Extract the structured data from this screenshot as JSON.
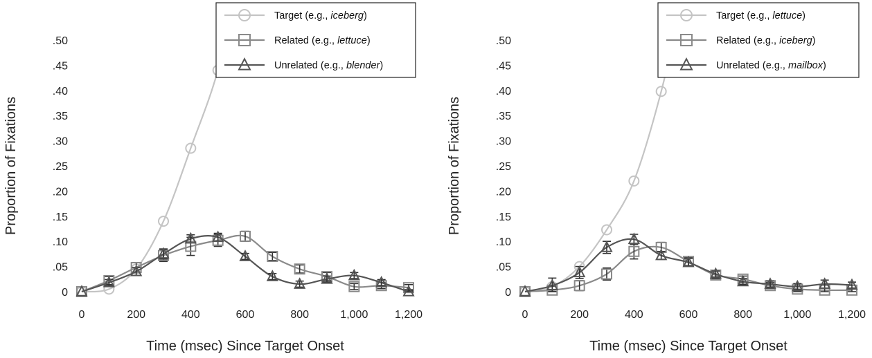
{
  "chart_data": [
    {
      "type": "line",
      "xlabel": "Time (msec) Since Target Onset",
      "ylabel": "Proportion of Fixations",
      "xlim": [
        0,
        1200
      ],
      "ylim": [
        0,
        0.5
      ],
      "x": [
        0,
        100,
        200,
        300,
        400,
        500,
        600,
        700,
        800,
        900,
        1000,
        1100,
        1200
      ],
      "xticks": [
        "0",
        "200",
        "400",
        "600",
        "800",
        "1,000",
        "1,200"
      ],
      "xtick_values": [
        0,
        200,
        400,
        600,
        800,
        1000,
        1200
      ],
      "yticks": [
        "0",
        ".05",
        ".10",
        ".15",
        ".20",
        ".25",
        ".30",
        ".35",
        ".40",
        ".45",
        ".50"
      ],
      "ytick_values": [
        0,
        0.05,
        0.1,
        0.15,
        0.2,
        0.25,
        0.3,
        0.35,
        0.4,
        0.45,
        0.5
      ],
      "legend_position": "top-right",
      "series": [
        {
          "prefix": "Target (e.g., ",
          "example": "iceberg",
          "suffix": ")",
          "marker": "circle",
          "color": "#c4c4c4",
          "values": [
            0,
            0.005,
            0.045,
            0.14,
            0.285,
            0.44,
            null,
            null,
            null,
            null,
            null,
            null,
            null
          ],
          "errors": [
            0,
            0,
            0,
            0,
            0,
            0,
            null,
            null,
            null,
            null,
            null,
            null,
            null
          ]
        },
        {
          "prefix": "Related (e.g., ",
          "example": "lettuce",
          "suffix": ")",
          "marker": "square",
          "color": "#8a8a8a",
          "values": [
            0,
            0.022,
            0.048,
            0.072,
            0.09,
            0.102,
            0.11,
            0.07,
            0.045,
            0.03,
            0.01,
            0.012,
            0.008
          ],
          "errors": [
            0,
            0.008,
            0.01,
            0.012,
            0.018,
            0.012,
            0.01,
            0.008,
            0.008,
            0.008,
            0.006,
            0.006,
            0.006
          ]
        },
        {
          "prefix": "Unrelated (e.g., ",
          "example": "blender",
          "suffix": ")",
          "marker": "triangle",
          "color": "#555555",
          "values": [
            0,
            0.018,
            0.04,
            0.075,
            0.105,
            0.108,
            0.07,
            0.03,
            0.015,
            0.025,
            0.032,
            0.018,
            0.0
          ],
          "errors": [
            0,
            0.006,
            0.008,
            0.01,
            0.008,
            0.008,
            0.006,
            0.006,
            0.006,
            0.006,
            0.006,
            0.006,
            0.004
          ]
        }
      ]
    },
    {
      "type": "line",
      "xlabel": "Time (msec) Since Target Onset",
      "ylabel": "Proportion of Fixations",
      "xlim": [
        0,
        1200
      ],
      "ylim": [
        0,
        0.5
      ],
      "x": [
        0,
        100,
        200,
        300,
        400,
        500,
        600,
        700,
        800,
        900,
        1000,
        1100,
        1200
      ],
      "xticks": [
        "0",
        "200",
        "400",
        "600",
        "800",
        "1,000",
        "1,200"
      ],
      "xtick_values": [
        0,
        200,
        400,
        600,
        800,
        1000,
        1200
      ],
      "yticks": [
        "0",
        ".05",
        ".10",
        ".15",
        ".20",
        ".25",
        ".30",
        ".35",
        ".40",
        ".45",
        ".50"
      ],
      "ytick_values": [
        0,
        0.05,
        0.1,
        0.15,
        0.2,
        0.25,
        0.3,
        0.35,
        0.4,
        0.45,
        0.5
      ],
      "legend_position": "top-right",
      "series": [
        {
          "prefix": "Target (e.g., ",
          "example": "lettuce",
          "suffix": ")",
          "marker": "circle",
          "color": "#c4c4c4",
          "values": [
            0,
            0.01,
            0.05,
            0.123,
            0.22,
            0.398,
            null,
            null,
            null,
            null,
            null,
            null,
            null
          ],
          "errors": [
            0,
            0,
            0,
            0,
            0,
            0,
            null,
            null,
            null,
            null,
            null,
            null,
            null
          ]
        },
        {
          "prefix": "Related (e.g., ",
          "example": "iceberg",
          "suffix": ")",
          "marker": "square",
          "color": "#8a8a8a",
          "values": [
            0,
            0.003,
            0.012,
            0.035,
            0.08,
            0.088,
            0.06,
            0.033,
            0.025,
            0.012,
            0.005,
            0.003,
            0.003
          ],
          "errors": [
            0,
            0.008,
            0.01,
            0.012,
            0.015,
            0.01,
            0.008,
            0.008,
            0.006,
            0.006,
            0.006,
            0.004,
            0.004
          ]
        },
        {
          "prefix": "Unrelated (e.g., ",
          "example": "mailbox",
          "suffix": ")",
          "marker": "triangle",
          "color": "#555555",
          "values": [
            0,
            0.012,
            0.038,
            0.088,
            0.104,
            0.072,
            0.058,
            0.035,
            0.02,
            0.015,
            0.01,
            0.015,
            0.013
          ],
          "errors": [
            0,
            0.015,
            0.012,
            0.012,
            0.01,
            0.008,
            0.008,
            0.006,
            0.006,
            0.006,
            0.006,
            0.008,
            0.006
          ]
        }
      ]
    }
  ]
}
